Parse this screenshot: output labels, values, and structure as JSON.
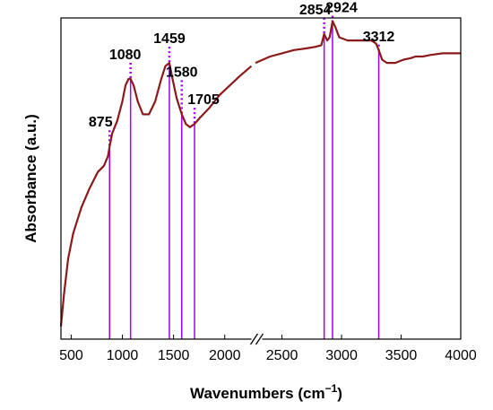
{
  "chart_data": {
    "type": "line",
    "title": "",
    "xlabel": "Wavenumbers (cm",
    "xlabel_superscript": "−1",
    "xlabel_close": ")",
    "ylabel": "Absorbance (a.u.)",
    "grid": false,
    "legend": "none",
    "x_segments": [
      {
        "range": [
          400,
          2300
        ],
        "ticks": [
          500,
          1000,
          1500,
          2000
        ]
      },
      {
        "range": [
          2300,
          4000
        ],
        "ticks": [
          2500,
          3000,
          3500,
          4000
        ]
      }
    ],
    "x_tick_labels": [
      "500",
      "1000",
      "1500",
      "2000",
      "2500",
      "3000",
      "3500",
      "4000"
    ],
    "axis_break": "//",
    "ylim": [
      0,
      100
    ],
    "series": [
      {
        "color": "#8b1a1a",
        "points": [
          [
            400,
            4
          ],
          [
            430,
            14
          ],
          [
            470,
            25
          ],
          [
            520,
            33
          ],
          [
            600,
            41
          ],
          [
            680,
            47
          ],
          [
            760,
            52
          ],
          [
            820,
            54
          ],
          [
            860,
            57
          ],
          [
            875,
            60
          ],
          [
            900,
            64
          ],
          [
            950,
            68
          ],
          [
            1000,
            74
          ],
          [
            1030,
            79
          ],
          [
            1060,
            81
          ],
          [
            1080,
            81
          ],
          [
            1110,
            79
          ],
          [
            1150,
            74
          ],
          [
            1200,
            70
          ],
          [
            1260,
            70
          ],
          [
            1320,
            74
          ],
          [
            1380,
            81
          ],
          [
            1420,
            85
          ],
          [
            1459,
            86
          ],
          [
            1490,
            81
          ],
          [
            1530,
            75
          ],
          [
            1580,
            70
          ],
          [
            1620,
            67
          ],
          [
            1660,
            66
          ],
          [
            1705,
            67
          ],
          [
            1760,
            69
          ],
          [
            1850,
            72
          ],
          [
            1950,
            76
          ],
          [
            2050,
            79
          ],
          [
            2150,
            82
          ],
          [
            2260,
            85
          ],
          [
            2300,
            86
          ],
          [
            2400,
            88
          ],
          [
            2500,
            89
          ],
          [
            2600,
            90
          ],
          [
            2700,
            90.5
          ],
          [
            2780,
            91
          ],
          [
            2830,
            91.5
          ],
          [
            2854,
            95
          ],
          [
            2880,
            93
          ],
          [
            2900,
            94
          ],
          [
            2924,
            99
          ],
          [
            2950,
            97
          ],
          [
            2980,
            94
          ],
          [
            3050,
            93
          ],
          [
            3150,
            93
          ],
          [
            3250,
            93
          ],
          [
            3290,
            92
          ],
          [
            3312,
            90
          ],
          [
            3340,
            87
          ],
          [
            3380,
            86
          ],
          [
            3450,
            86
          ],
          [
            3520,
            87
          ],
          [
            3580,
            87.5
          ],
          [
            3620,
            88
          ],
          [
            3680,
            88
          ],
          [
            3750,
            88.5
          ],
          [
            3850,
            89
          ],
          [
            3950,
            89
          ],
          [
            4000,
            89
          ]
        ]
      }
    ],
    "peak_lines_color": "#a100f2",
    "peaks": [
      {
        "x": 875,
        "label": "875"
      },
      {
        "x": 1080,
        "label": "1080"
      },
      {
        "x": 1459,
        "label": "1459"
      },
      {
        "x": 1580,
        "label": "1580"
      },
      {
        "x": 1705,
        "label": "1705"
      },
      {
        "x": 2854,
        "label": "2854"
      },
      {
        "x": 2924,
        "label": "2924"
      },
      {
        "x": 3312,
        "label": "3312"
      }
    ]
  }
}
